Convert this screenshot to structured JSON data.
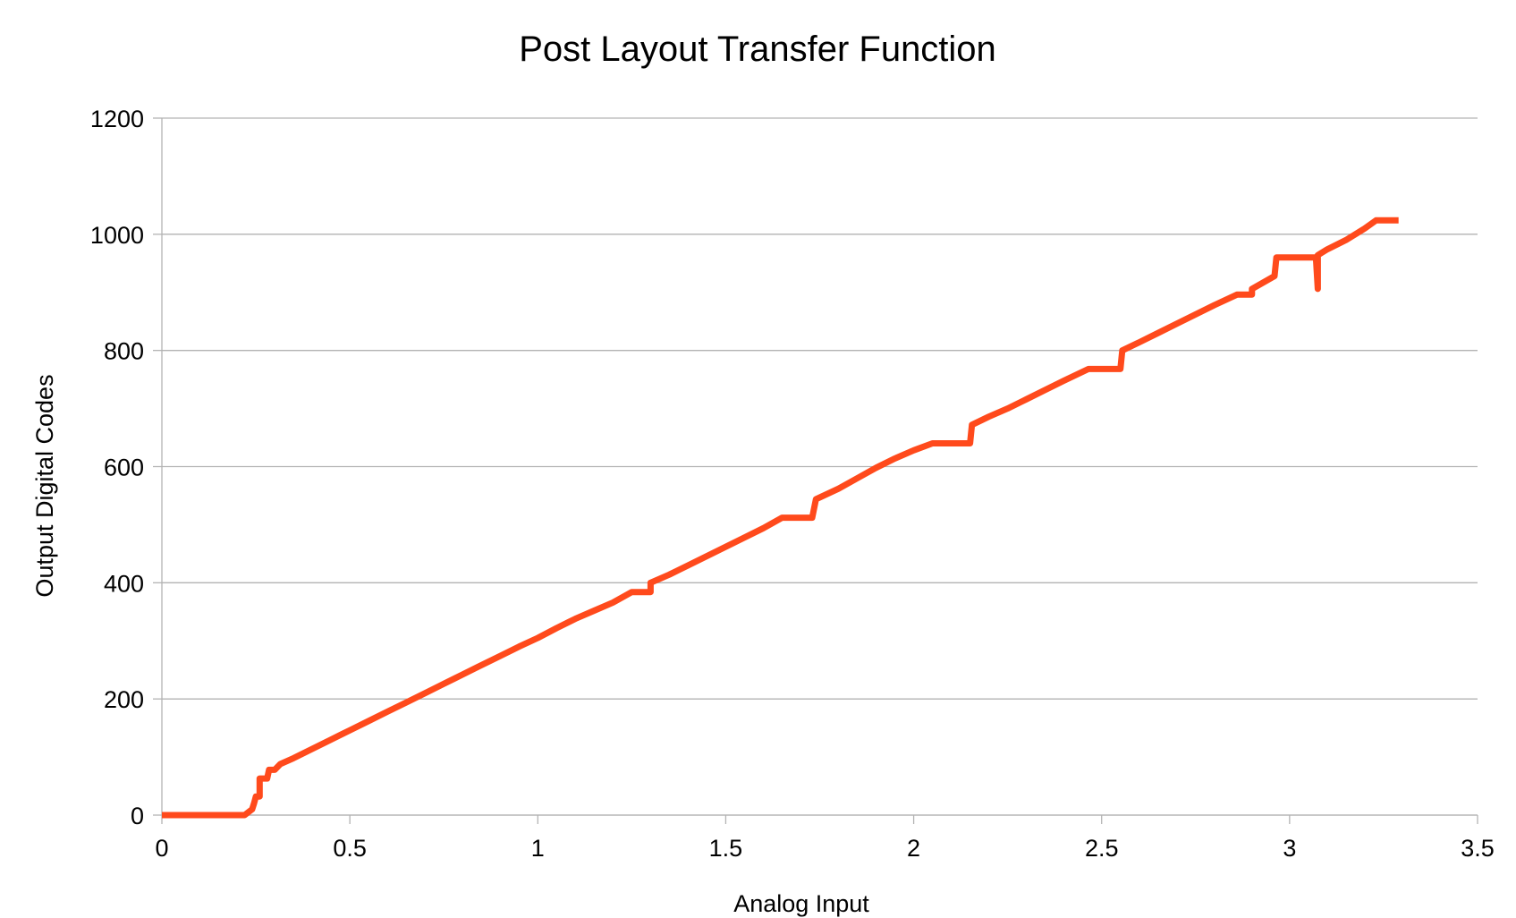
{
  "chart_data": {
    "type": "line",
    "title": "Post Layout Transfer Function",
    "xlabel": "Analog Input",
    "ylabel": "Output Digital Codes",
    "xlim": [
      0,
      3.5
    ],
    "ylim": [
      0,
      1200
    ],
    "x_ticks": [
      "0",
      "0.5",
      "1",
      "1.5",
      "2",
      "2.5",
      "3",
      "3.5"
    ],
    "y_ticks": [
      "0",
      "200",
      "400",
      "600",
      "800",
      "1000",
      "1200"
    ],
    "grid": "horizontal",
    "legend": "none",
    "series": [
      {
        "color": "#ff4a1c",
        "points": [
          [
            0,
            0
          ],
          [
            0.22,
            0
          ],
          [
            0.24,
            10
          ],
          [
            0.245,
            20
          ],
          [
            0.25,
            32
          ],
          [
            0.26,
            32
          ],
          [
            0.26,
            63
          ],
          [
            0.28,
            63
          ],
          [
            0.285,
            78
          ],
          [
            0.3,
            78
          ],
          [
            0.315,
            88
          ],
          [
            0.35,
            98
          ],
          [
            0.4,
            114
          ],
          [
            0.45,
            130
          ],
          [
            0.5,
            146
          ],
          [
            0.55,
            162
          ],
          [
            0.6,
            178
          ],
          [
            0.65,
            194
          ],
          [
            0.7,
            210
          ],
          [
            0.75,
            226
          ],
          [
            0.8,
            242
          ],
          [
            0.84,
            255
          ],
          [
            0.9,
            274
          ],
          [
            0.95,
            290
          ],
          [
            1.0,
            305
          ],
          [
            1.05,
            322
          ],
          [
            1.1,
            338
          ],
          [
            1.15,
            352
          ],
          [
            1.2,
            366
          ],
          [
            1.25,
            384
          ],
          [
            1.3,
            384
          ],
          [
            1.3,
            400
          ],
          [
            1.35,
            414
          ],
          [
            1.4,
            430
          ],
          [
            1.45,
            446
          ],
          [
            1.5,
            462
          ],
          [
            1.55,
            478
          ],
          [
            1.6,
            494
          ],
          [
            1.65,
            512
          ],
          [
            1.73,
            512
          ],
          [
            1.74,
            544
          ],
          [
            1.8,
            562
          ],
          [
            1.85,
            580
          ],
          [
            1.9,
            598
          ],
          [
            1.95,
            614
          ],
          [
            2.0,
            628
          ],
          [
            2.05,
            640
          ],
          [
            2.15,
            640
          ],
          [
            2.155,
            672
          ],
          [
            2.2,
            686
          ],
          [
            2.25,
            700
          ],
          [
            2.3,
            716
          ],
          [
            2.35,
            732
          ],
          [
            2.4,
            748
          ],
          [
            2.465,
            768
          ],
          [
            2.55,
            768
          ],
          [
            2.555,
            800
          ],
          [
            2.6,
            814
          ],
          [
            2.65,
            830
          ],
          [
            2.7,
            846
          ],
          [
            2.75,
            862
          ],
          [
            2.8,
            878
          ],
          [
            2.86,
            896
          ],
          [
            2.9,
            896
          ],
          [
            2.9,
            906
          ],
          [
            2.96,
            928
          ],
          [
            2.965,
            960
          ],
          [
            3.07,
            960
          ],
          [
            3.075,
            906
          ],
          [
            3.075,
            964
          ],
          [
            3.1,
            974
          ],
          [
            3.15,
            990
          ],
          [
            3.2,
            1010
          ],
          [
            3.23,
            1024
          ],
          [
            3.29,
            1024
          ]
        ]
      }
    ]
  }
}
